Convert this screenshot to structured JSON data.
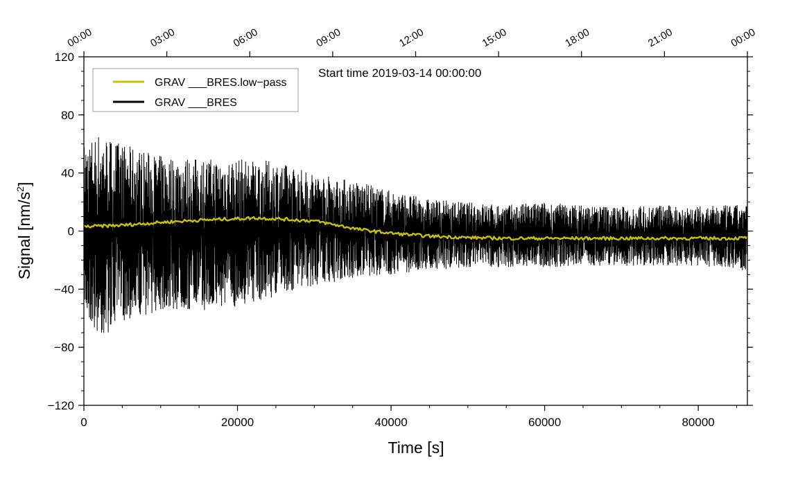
{
  "chart_data": {
    "type": "line",
    "annotation": "Start time 2019-03-14 00:00:00",
    "xlabel": "Time [s]",
    "ylabel_main": "Signal [nm/s",
    "ylabel_sup": "2",
    "ylabel_tail": "]",
    "xlim": [
      0,
      86400
    ],
    "ylim": [
      -120,
      120
    ],
    "xticks": [
      0,
      20000,
      40000,
      60000,
      80000
    ],
    "xtick_labels": [
      "0",
      "20000",
      "40000",
      "60000",
      "80000"
    ],
    "yticks": [
      -120,
      -80,
      -40,
      0,
      40,
      80,
      120
    ],
    "ytick_labels": [
      "−120",
      "−80",
      "−40",
      "0",
      "40",
      "80",
      "120"
    ],
    "top_ticks": [
      0,
      10800,
      21600,
      32400,
      43200,
      54000,
      64800,
      75600,
      86400
    ],
    "top_tick_labels": [
      "00:00",
      "03:00",
      "06:00",
      "09:00",
      "12:00",
      "15:00",
      "18:00",
      "21:00",
      "00:00"
    ],
    "grid": false,
    "legend_position": "top-left",
    "series": [
      {
        "name": "GRAV ___BRES.low−pass",
        "color": "#c8c000",
        "x": [
          0,
          5000,
          10000,
          15000,
          20000,
          22000,
          25000,
          28000,
          30000,
          33000,
          36000,
          40000,
          45000,
          50000,
          55000,
          60000,
          65000,
          70000,
          75000,
          80000,
          85000,
          86400
        ],
        "values": [
          3,
          4,
          6,
          7.5,
          8.5,
          9,
          8.5,
          7.5,
          7,
          4,
          1,
          -1.5,
          -3.5,
          -4.5,
          -5,
          -5,
          -5,
          -5,
          -5,
          -5,
          -5,
          -4.5
        ]
      },
      {
        "name": "GRAV ___BRES",
        "color": "#000000",
        "x": [
          0,
          2000,
          5000,
          10000,
          15000,
          20000,
          25000,
          30000,
          35000,
          40000,
          45000,
          50000,
          55000,
          60000,
          65000,
          70000,
          75000,
          80000,
          85000,
          86400
        ],
        "envelope_upper": [
          60,
          68,
          60,
          52,
          50,
          50,
          48,
          40,
          35,
          28,
          22,
          20,
          18,
          20,
          18,
          17,
          18,
          17,
          18,
          18
        ],
        "envelope_lower": [
          -55,
          -75,
          -62,
          -55,
          -55,
          -52,
          -45,
          -38,
          -33,
          -30,
          -27,
          -25,
          -25,
          -25,
          -24,
          -24,
          -24,
          -24,
          -26,
          -28
        ]
      }
    ]
  }
}
